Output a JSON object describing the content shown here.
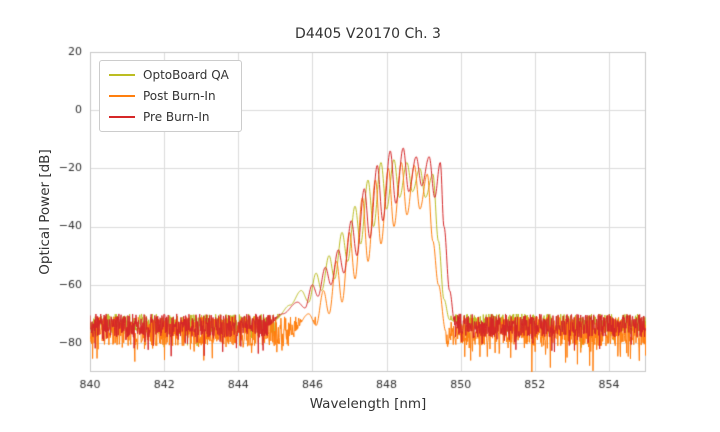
{
  "chart_data": {
    "type": "line",
    "title": "D4405 V20170 Ch. 3",
    "xlabel": "Wavelength [nm]",
    "ylabel": "Optical Power [dB]",
    "xlim": [
      840,
      855
    ],
    "ylim": [
      -90,
      20
    ],
    "xticks": [
      840,
      842,
      844,
      846,
      848,
      850,
      852,
      854
    ],
    "yticks": [
      20,
      0,
      -20,
      -40,
      -60,
      -80
    ],
    "grid": true,
    "grid_color": "#dcdcdc",
    "frame_color": "#c8c8c8",
    "background": "#ffffff",
    "legend_position": "upper left",
    "series": [
      {
        "name": "OptoBoard QA",
        "color": "#bcbd22",
        "seed": 101,
        "noise": {
          "floor": -73.5,
          "amp": 3.5,
          "spike_prob": 0.06,
          "spike": 7
        },
        "anchors": [
          [
            845.0,
            -72
          ],
          [
            845.4,
            -67
          ],
          [
            845.7,
            -62
          ],
          [
            845.9,
            -66
          ],
          [
            846.1,
            -56
          ],
          [
            846.25,
            -62
          ],
          [
            846.45,
            -50
          ],
          [
            846.6,
            -58
          ],
          [
            846.8,
            -42
          ],
          [
            846.95,
            -52
          ],
          [
            847.15,
            -33
          ],
          [
            847.3,
            -46
          ],
          [
            847.5,
            -24
          ],
          [
            847.65,
            -40
          ],
          [
            847.85,
            -18
          ],
          [
            848.0,
            -34
          ],
          [
            848.2,
            -17
          ],
          [
            848.35,
            -30
          ],
          [
            848.55,
            -18
          ],
          [
            848.7,
            -28
          ],
          [
            848.9,
            -20
          ],
          [
            849.05,
            -30
          ],
          [
            849.25,
            -22
          ],
          [
            849.4,
            -45
          ],
          [
            849.55,
            -65
          ],
          [
            849.7,
            -72
          ],
          [
            850.0,
            -74
          ]
        ]
      },
      {
        "name": "Post Burn-In",
        "color": "#ff7f0e",
        "seed": 202,
        "noise": {
          "floor": -76,
          "amp": 5,
          "spike_prob": 0.12,
          "spike": 10
        },
        "anchors": [
          [
            845.5,
            -76
          ],
          [
            845.9,
            -70
          ],
          [
            846.1,
            -74
          ],
          [
            846.3,
            -62
          ],
          [
            846.45,
            -70
          ],
          [
            846.65,
            -52
          ],
          [
            846.8,
            -66
          ],
          [
            847.0,
            -42
          ],
          [
            847.15,
            -58
          ],
          [
            847.35,
            -30
          ],
          [
            847.5,
            -52
          ],
          [
            847.7,
            -24
          ],
          [
            847.85,
            -46
          ],
          [
            848.05,
            -20
          ],
          [
            848.2,
            -40
          ],
          [
            848.4,
            -18
          ],
          [
            848.55,
            -36
          ],
          [
            848.75,
            -19
          ],
          [
            848.9,
            -34
          ],
          [
            849.1,
            -22
          ],
          [
            849.25,
            -45
          ],
          [
            849.4,
            -60
          ],
          [
            849.6,
            -76
          ]
        ]
      },
      {
        "name": "Pre Burn-In",
        "color": "#d62728",
        "seed": 303,
        "noise": {
          "floor": -74,
          "amp": 4,
          "spike_prob": 0.08,
          "spike": 8
        },
        "anchors": [
          [
            844.8,
            -74
          ],
          [
            845.2,
            -70
          ],
          [
            845.6,
            -66
          ],
          [
            845.8,
            -68
          ],
          [
            846.0,
            -60
          ],
          [
            846.15,
            -64
          ],
          [
            846.35,
            -54
          ],
          [
            846.5,
            -60
          ],
          [
            846.7,
            -48
          ],
          [
            846.85,
            -56
          ],
          [
            847.05,
            -38
          ],
          [
            847.2,
            -50
          ],
          [
            847.4,
            -27
          ],
          [
            847.55,
            -44
          ],
          [
            847.75,
            -19
          ],
          [
            847.9,
            -38
          ],
          [
            848.1,
            -14
          ],
          [
            848.25,
            -32
          ],
          [
            848.45,
            -13
          ],
          [
            848.6,
            -28
          ],
          [
            848.8,
            -16
          ],
          [
            848.95,
            -26
          ],
          [
            849.15,
            -16
          ],
          [
            849.3,
            -30
          ],
          [
            849.45,
            -18
          ],
          [
            849.55,
            -40
          ],
          [
            849.7,
            -62
          ],
          [
            849.85,
            -74
          ]
        ]
      }
    ]
  }
}
